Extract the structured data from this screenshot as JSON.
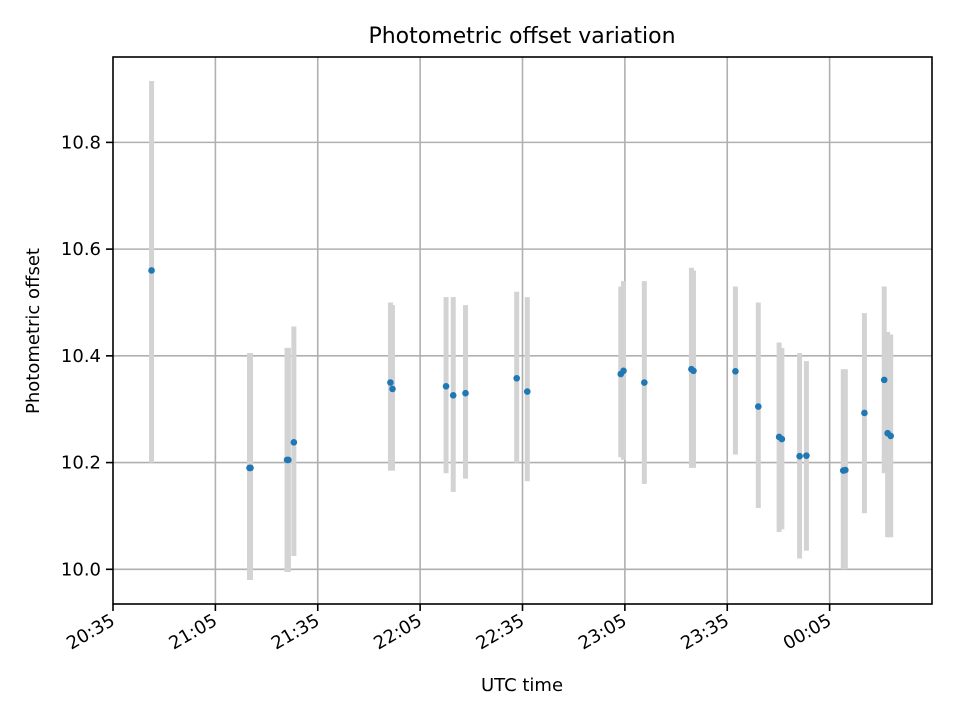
{
  "chart_data": {
    "type": "scatter",
    "title": "Photometric offset variation",
    "xlabel": "UTC time",
    "ylabel": "Photometric offset",
    "x_tick_labels": [
      "20:35",
      "21:05",
      "21:35",
      "22:05",
      "22:35",
      "23:05",
      "23:35",
      "00:05"
    ],
    "x_ticks_minutes": [
      0,
      30,
      60,
      90,
      120,
      150,
      180,
      210
    ],
    "x_unit": "minutes after 20:35 UTC",
    "xlim": [
      0,
      240
    ],
    "ylim": [
      9.935,
      10.96
    ],
    "y_ticks": [
      10.0,
      10.2,
      10.4,
      10.6,
      10.8
    ],
    "y_tick_labels": [
      "10.0",
      "10.2",
      "10.4",
      "10.6",
      "10.8"
    ],
    "grid": true,
    "error_color": "#d3d3d3",
    "point_color": "#1f77b4",
    "points": [
      {
        "x": 11.3,
        "y": 10.56,
        "ylo": 10.2,
        "yhi": 10.915
      },
      {
        "x": 40.0,
        "y": 10.19,
        "ylo": 9.98,
        "yhi": 10.405
      },
      {
        "x": 40.3,
        "y": 10.19,
        "ylo": 9.98,
        "yhi": 10.405
      },
      {
        "x": 51.0,
        "y": 10.205,
        "ylo": 9.995,
        "yhi": 10.415
      },
      {
        "x": 51.4,
        "y": 10.205,
        "ylo": 9.995,
        "yhi": 10.415
      },
      {
        "x": 53.0,
        "y": 10.238,
        "ylo": 10.025,
        "yhi": 10.455
      },
      {
        "x": 81.3,
        "y": 10.35,
        "ylo": 10.185,
        "yhi": 10.5
      },
      {
        "x": 81.9,
        "y": 10.338,
        "ylo": 10.185,
        "yhi": 10.495
      },
      {
        "x": 97.6,
        "y": 10.343,
        "ylo": 10.18,
        "yhi": 10.51
      },
      {
        "x": 99.7,
        "y": 10.326,
        "ylo": 10.145,
        "yhi": 10.51
      },
      {
        "x": 103.3,
        "y": 10.33,
        "ylo": 10.17,
        "yhi": 10.495
      },
      {
        "x": 118.3,
        "y": 10.358,
        "ylo": 10.2,
        "yhi": 10.52
      },
      {
        "x": 121.4,
        "y": 10.333,
        "ylo": 10.165,
        "yhi": 10.51
      },
      {
        "x": 148.8,
        "y": 10.366,
        "ylo": 10.21,
        "yhi": 10.53
      },
      {
        "x": 149.6,
        "y": 10.372,
        "ylo": 10.205,
        "yhi": 10.54
      },
      {
        "x": 155.7,
        "y": 10.35,
        "ylo": 10.16,
        "yhi": 10.54
      },
      {
        "x": 169.5,
        "y": 10.375,
        "ylo": 10.19,
        "yhi": 10.565
      },
      {
        "x": 170.1,
        "y": 10.372,
        "ylo": 10.19,
        "yhi": 10.56
      },
      {
        "x": 182.4,
        "y": 10.371,
        "ylo": 10.215,
        "yhi": 10.53
      },
      {
        "x": 189.1,
        "y": 10.305,
        "ylo": 10.115,
        "yhi": 10.5
      },
      {
        "x": 195.2,
        "y": 10.248,
        "ylo": 10.07,
        "yhi": 10.425
      },
      {
        "x": 196.0,
        "y": 10.244,
        "ylo": 10.075,
        "yhi": 10.415
      },
      {
        "x": 201.2,
        "y": 10.212,
        "ylo": 10.02,
        "yhi": 10.405
      },
      {
        "x": 203.2,
        "y": 10.213,
        "ylo": 10.035,
        "yhi": 10.39
      },
      {
        "x": 214.0,
        "y": 10.185,
        "ylo": 10.0,
        "yhi": 10.375
      },
      {
        "x": 214.6,
        "y": 10.186,
        "ylo": 10.0,
        "yhi": 10.375
      },
      {
        "x": 220.2,
        "y": 10.293,
        "ylo": 10.105,
        "yhi": 10.48
      },
      {
        "x": 226.0,
        "y": 10.355,
        "ylo": 10.18,
        "yhi": 10.53
      },
      {
        "x": 227.0,
        "y": 10.255,
        "ylo": 10.06,
        "yhi": 10.445
      },
      {
        "x": 227.9,
        "y": 10.25,
        "ylo": 10.06,
        "yhi": 10.44
      }
    ]
  }
}
